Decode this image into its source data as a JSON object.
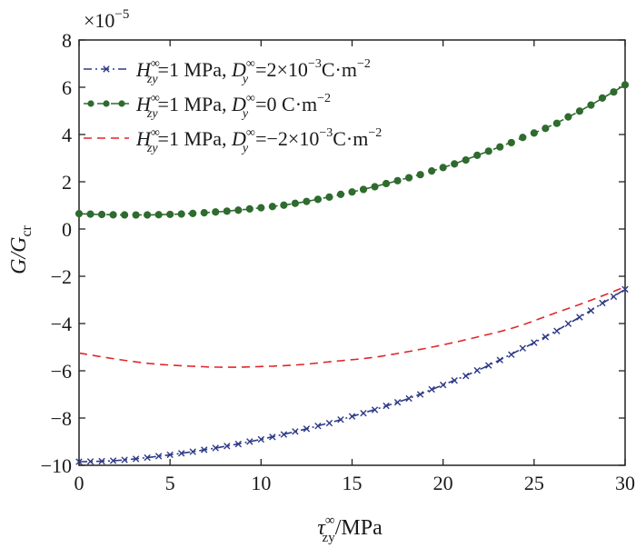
{
  "chart_data": {
    "type": "line",
    "title": "",
    "xlabel": {
      "main": "τ",
      "sup": "∞",
      "sub": "zy",
      "tail": "/MPa"
    },
    "ylabel": {
      "main": "G/G",
      "sub": "cr"
    },
    "scale_note": {
      "base": "×10",
      "exp": "−5"
    },
    "xlim": [
      0,
      30
    ],
    "ylim": [
      -10,
      8
    ],
    "xticks": [
      0,
      5,
      10,
      15,
      20,
      25,
      30
    ],
    "xtick_labels": [
      "0",
      "5",
      "10",
      "15",
      "20",
      "25",
      "30"
    ],
    "yticks": [
      -10,
      -8,
      -6,
      -4,
      -2,
      0,
      2,
      4,
      6,
      8
    ],
    "ytick_labels": [
      "−10",
      "−8",
      "−6",
      "−4",
      "−2",
      "0",
      "2",
      "4",
      "6",
      "8"
    ],
    "grid": false,
    "legend_position": "top-left",
    "series": [
      {
        "legend": {
          "H": "H",
          "Hsup": "∞",
          "Hsub": "zy",
          "Hval": "=1 MPa,",
          "D": "D",
          "Dsup": "∞",
          "Dsub": "y",
          "Dval": "=2×10",
          "Dexp": "−3",
          "unit": "C·m",
          "unitexp": "−2"
        },
        "color": "#2e3a87",
        "style": "dash-dot",
        "marker": "x",
        "x": [
          0,
          2,
          4,
          6,
          8,
          10,
          12,
          14,
          16,
          18,
          20,
          22,
          24,
          26,
          28,
          30
        ],
        "y": [
          -9.85,
          -9.8,
          -9.65,
          -9.45,
          -9.2,
          -8.9,
          -8.55,
          -8.15,
          -7.7,
          -7.2,
          -6.6,
          -5.95,
          -5.2,
          -4.4,
          -3.5,
          -2.55
        ]
      },
      {
        "legend": {
          "H": "H",
          "Hsup": "∞",
          "Hsub": "zy",
          "Hval": "=1 MPa,",
          "D": "D",
          "Dsup": "∞",
          "Dsub": "y",
          "Dval": "=0 C·m",
          "Dexp": "−2",
          "unit": "",
          "unitexp": ""
        },
        "color": "#2f6b2f",
        "style": "dash",
        "marker": "o",
        "x": [
          0,
          2,
          4,
          6,
          8,
          10,
          12,
          14,
          16,
          18,
          20,
          22,
          24,
          26,
          28,
          30
        ],
        "y": [
          0.65,
          0.6,
          0.6,
          0.65,
          0.75,
          0.9,
          1.1,
          1.4,
          1.75,
          2.15,
          2.6,
          3.15,
          3.75,
          4.4,
          5.2,
          6.1
        ]
      },
      {
        "legend": {
          "H": "H",
          "Hsup": "∞",
          "Hsub": "zy",
          "Hval": "=1 MPa,",
          "D": "D",
          "Dsup": "∞",
          "Dsub": "y",
          "Dval": "=−2×10",
          "Dexp": "−3",
          "unit": "C·m",
          "unitexp": "−2"
        },
        "color": "#e0272a",
        "style": "dash",
        "marker": "none",
        "x": [
          0,
          2,
          4,
          6,
          8,
          10,
          12,
          14,
          16,
          18,
          20,
          22,
          24,
          26,
          28,
          30
        ],
        "y": [
          -5.25,
          -5.5,
          -5.7,
          -5.8,
          -5.85,
          -5.82,
          -5.75,
          -5.6,
          -5.45,
          -5.2,
          -4.9,
          -4.55,
          -4.15,
          -3.6,
          -3.05,
          -2.45
        ]
      }
    ]
  }
}
